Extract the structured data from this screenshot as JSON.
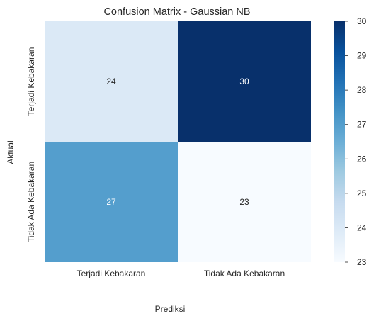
{
  "chart_data": {
    "type": "heatmap",
    "title": "Confusion Matrix - Gaussian NB",
    "xlabel": "Prediksi",
    "ylabel": "Aktual",
    "x_categories": [
      "Terjadi Kebakaran",
      "Tidak Ada Kebakaran"
    ],
    "y_categories": [
      "Terjadi Kebakaran",
      "Tidak Ada Kebakaran"
    ],
    "values": [
      [
        24,
        30
      ],
      [
        27,
        23
      ]
    ],
    "colormap": "Blues",
    "vmin": 23,
    "vmax": 30,
    "colorbar_ticks": [
      23,
      24,
      25,
      26,
      27,
      28,
      29,
      30
    ]
  }
}
